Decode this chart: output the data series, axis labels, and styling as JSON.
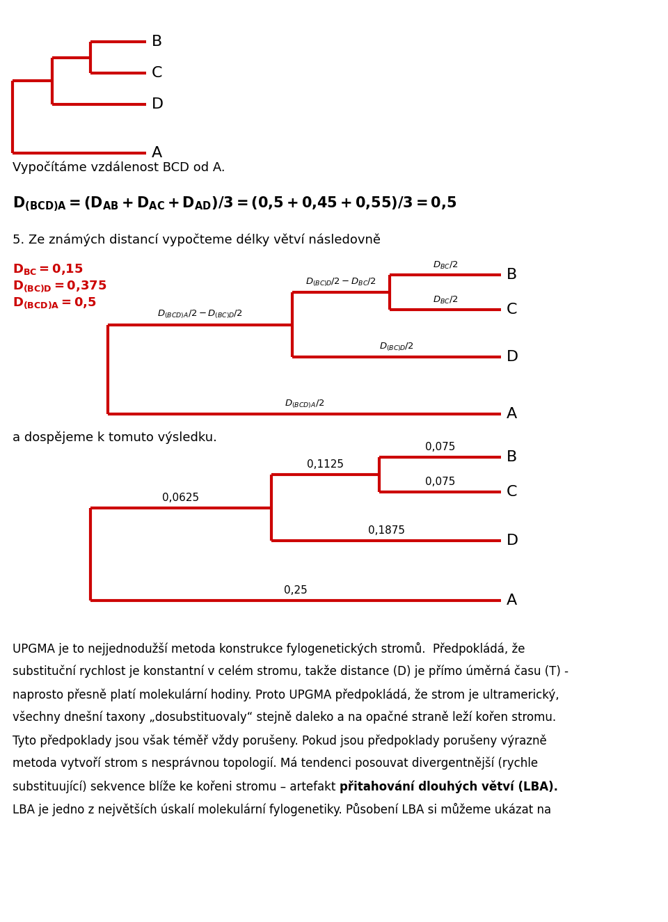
{
  "bg_color": "#ffffff",
  "tree_color": "#cc0000",
  "text_color": "#000000",
  "red_text_color": "#cc0000",
  "line_width": 3.0,
  "text_vypocitame": "Vypočítáme vzdálenost BCD od A.",
  "text_section5": "5. Ze známých distancí vypočteme délky větví následovně",
  "text_adospejeme": "a dospějeme k tomuto výsledku.",
  "bottom_text_lines": [
    {
      "text": "UPGMA je to nejjednodužší metoda konstrukce fylogenetických stromů.  Předpokládá, že",
      "bold_part": ""
    },
    {
      "text": "substituční rychlost je konstantní v celém stromu, takže distance (D) je přímo úměrná času (T) -",
      "bold_part": ""
    },
    {
      "text": "naprosto přesně platí molekulární hodiny. Proto UPGMA předpokládá, že strom je ultramerický,",
      "bold_part": ""
    },
    {
      "text": "všechny dnešní taxony „dosubstituovaly“ stejně daleko a na opačné straně leží kořen stromu.",
      "bold_part": ""
    },
    {
      "text": "Tyto předpoklady jsou však téměř vždy porušeny. Pokud jsou předpoklady porušeny výrazně",
      "bold_part": ""
    },
    {
      "text": "metoda vytvoří strom s nesprávnou topologií. Má tendenci posouvat divergentnější (rychle",
      "bold_part": ""
    },
    {
      "text": "substituující) sekvence blíže ke kořeni stromu – artefakt přitahování dlouhých větví (LBA).",
      "bold_part": "přitahování dlouhých větví (LBA)."
    },
    {
      "text": "LBA je jedno z největších úskalí molekulární fylogenetiky. Působení LBA si můžeme ukázat na",
      "bold_part": ""
    }
  ]
}
